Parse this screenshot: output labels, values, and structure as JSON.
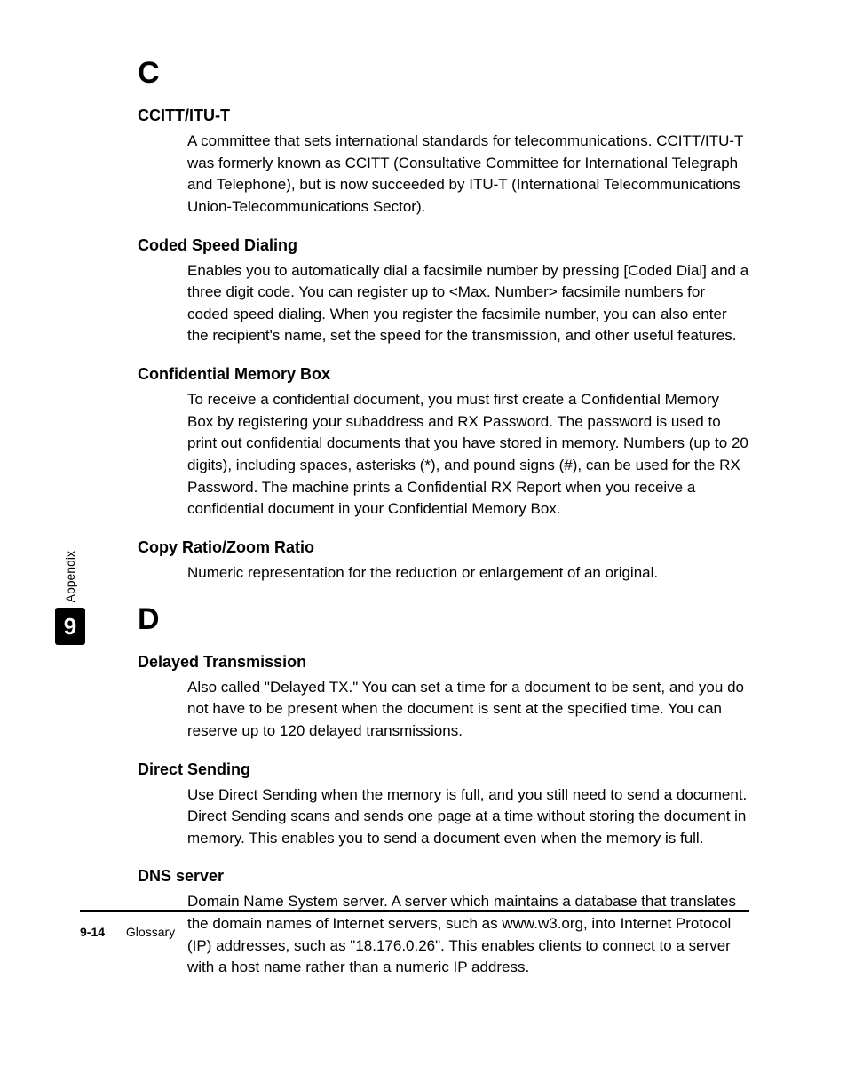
{
  "side": {
    "label": "Appendix",
    "chapter": "9"
  },
  "sections": [
    {
      "letter": "C",
      "entries": [
        {
          "term": "CCITT/ITU-T",
          "def": "A committee that sets international standards for telecommunications. CCITT/ITU-T was formerly known as CCITT (Consultative Committee for International Telegraph and Telephone), but is now succeeded by ITU-T (International Telecommunications Union-Telecommunications Sector)."
        },
        {
          "term": "Coded Speed Dialing",
          "def": "Enables you to automatically dial a facsimile number by pressing [Coded Dial] and a three digit code. You can register up to <Max. Number> facsimile numbers for coded speed dialing. When you register the facsimile number, you can also enter the recipient's name, set the speed for the transmission, and other useful features."
        },
        {
          "term": "Confidential Memory Box",
          "def": "To receive a confidential document, you must first create a Confidential Memory Box by registering your subaddress and RX Password. The password is used to print out confidential documents that you have stored in memory. Numbers (up to 20 digits), including spaces, asterisks (*), and pound signs (#), can be used for the RX Password. The machine prints a Confidential RX Report when you receive a confidential document in your Confidential Memory Box."
        },
        {
          "term": "Copy Ratio/Zoom Ratio",
          "def": "Numeric representation for the reduction or enlargement of an original."
        }
      ]
    },
    {
      "letter": "D",
      "entries": [
        {
          "term": "Delayed Transmission",
          "def": "Also called \"Delayed TX.\" You can set a time for a document to be sent, and you do not have to be present when the document is sent at the specified time. You can reserve up to 120 delayed transmissions."
        },
        {
          "term": "Direct Sending",
          "def": "Use Direct Sending when the memory is full, and you still need to send a document. Direct Sending scans and sends one page at a time without storing the document in memory. This enables you to send a document even when the memory is full."
        },
        {
          "term": "DNS server",
          "def": "Domain Name System server. A server which maintains a database that translates the domain names of Internet servers, such as www.w3.org, into Internet Protocol (IP) addresses, such as \"18.176.0.26\". This enables clients to connect to a server with a host name rather than a numeric IP address."
        }
      ]
    }
  ],
  "footer": {
    "page": "9-14",
    "section": "Glossary"
  },
  "style": {
    "page_bg": "#ffffff",
    "text_color": "#000000",
    "rule_color": "#000000",
    "side_box_bg": "#000000",
    "side_box_fg": "#ffffff",
    "body_fontsize": 17,
    "term_fontsize": 18,
    "letter_fontsize": 34,
    "footer_fontsize": 14
  }
}
